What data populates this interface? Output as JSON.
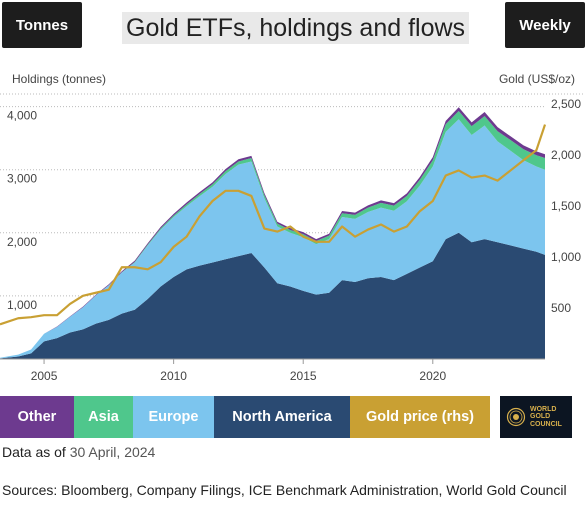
{
  "header": {
    "units_label": "Tonnes",
    "title": "Gold ETFs, holdings and flows",
    "frequency_label": "Weekly"
  },
  "legend": {
    "other": "Other",
    "asia": "Asia",
    "europe": "Europe",
    "north_america": "North America",
    "gold": "Gold price (rhs)"
  },
  "logo": {
    "line1": "WORLD",
    "line2": "GOLD",
    "line3": "COUNCIL"
  },
  "footer": {
    "data_as_of_prefix": "Data as of",
    "data_as_of_date": "30 April, 2024",
    "sources": "Sources: Bloomberg, Company Filings, ICE Benchmark Administration, World Gold Council"
  },
  "colors": {
    "other": "#6d3a8f",
    "asia": "#4fc78c",
    "europe": "#7cc5ee",
    "north_america": "#2a4a72",
    "gold": "#c9a033"
  },
  "chart_data": {
    "type": "area",
    "stacked": true,
    "ylabel": "Holdings (tonnes)",
    "ylabel_right": "Gold (US$/oz)",
    "x_ticks": [
      2005,
      2010,
      2015,
      2020
    ],
    "y_ticks": [
      "1,000",
      "2,000",
      "3,000",
      "4,000"
    ],
    "y_ticks_right": [
      "500",
      "1,000",
      "1,500",
      "2,000",
      "2,500"
    ],
    "xlim": [
      2003.3,
      2024.33
    ],
    "ylim": [
      0,
      4200
    ],
    "ylim_right": [
      0,
      2600
    ],
    "grid": "horizontal",
    "x": [
      2003.3,
      2004.0,
      2004.5,
      2005.0,
      2005.5,
      2006.0,
      2006.5,
      2007.0,
      2007.5,
      2008.0,
      2008.5,
      2009.0,
      2009.5,
      2010.0,
      2010.5,
      2011.0,
      2011.5,
      2012.0,
      2012.5,
      2013.0,
      2013.5,
      2014.0,
      2014.5,
      2015.0,
      2015.5,
      2016.0,
      2016.5,
      2017.0,
      2017.5,
      2018.0,
      2018.5,
      2019.0,
      2019.5,
      2020.0,
      2020.5,
      2021.0,
      2021.5,
      2022.0,
      2022.5,
      2023.0,
      2023.5,
      2024.0,
      2024.33
    ],
    "series": [
      {
        "name": "North America",
        "values": [
          10,
          40,
          90,
          280,
          330,
          420,
          470,
          560,
          620,
          720,
          780,
          950,
          1150,
          1300,
          1420,
          1480,
          1530,
          1580,
          1630,
          1680,
          1450,
          1200,
          1150,
          1080,
          1020,
          1050,
          1250,
          1220,
          1280,
          1300,
          1250,
          1350,
          1450,
          1550,
          1900,
          2000,
          1850,
          1900,
          1850,
          1800,
          1750,
          1700,
          1650
        ]
      },
      {
        "name": "Europe",
        "values": [
          10,
          30,
          60,
          120,
          180,
          250,
          350,
          450,
          550,
          650,
          750,
          850,
          900,
          950,
          1000,
          1100,
          1200,
          1350,
          1450,
          1450,
          1100,
          900,
          850,
          850,
          800,
          850,
          1000,
          1000,
          1050,
          1100,
          1100,
          1150,
          1300,
          1500,
          1700,
          1800,
          1700,
          1800,
          1600,
          1500,
          1400,
          1350,
          1350
        ]
      },
      {
        "name": "Asia",
        "values": [
          0,
          0,
          0,
          0,
          0,
          0,
          0,
          0,
          0,
          5,
          10,
          15,
          20,
          25,
          30,
          35,
          40,
          45,
          50,
          55,
          50,
          45,
          45,
          50,
          50,
          55,
          60,
          65,
          70,
          75,
          80,
          85,
          90,
          100,
          120,
          130,
          140,
          150,
          160,
          170,
          175,
          180,
          185
        ]
      },
      {
        "name": "Other",
        "values": [
          0,
          0,
          0,
          0,
          5,
          5,
          10,
          10,
          15,
          15,
          20,
          20,
          25,
          25,
          30,
          30,
          30,
          35,
          35,
          35,
          30,
          30,
          30,
          30,
          30,
          30,
          35,
          35,
          35,
          40,
          40,
          40,
          45,
          50,
          55,
          60,
          60,
          65,
          65,
          60,
          60,
          60,
          60
        ]
      },
      {
        "name": "Gold price (rhs)",
        "axis": "right",
        "values": [
          340,
          400,
          410,
          430,
          430,
          540,
          620,
          650,
          680,
          900,
          900,
          880,
          950,
          1100,
          1200,
          1400,
          1550,
          1650,
          1650,
          1600,
          1280,
          1250,
          1300,
          1200,
          1150,
          1150,
          1300,
          1200,
          1270,
          1320,
          1250,
          1300,
          1450,
          1550,
          1800,
          1850,
          1780,
          1800,
          1750,
          1850,
          1950,
          2050,
          2300
        ]
      }
    ]
  }
}
